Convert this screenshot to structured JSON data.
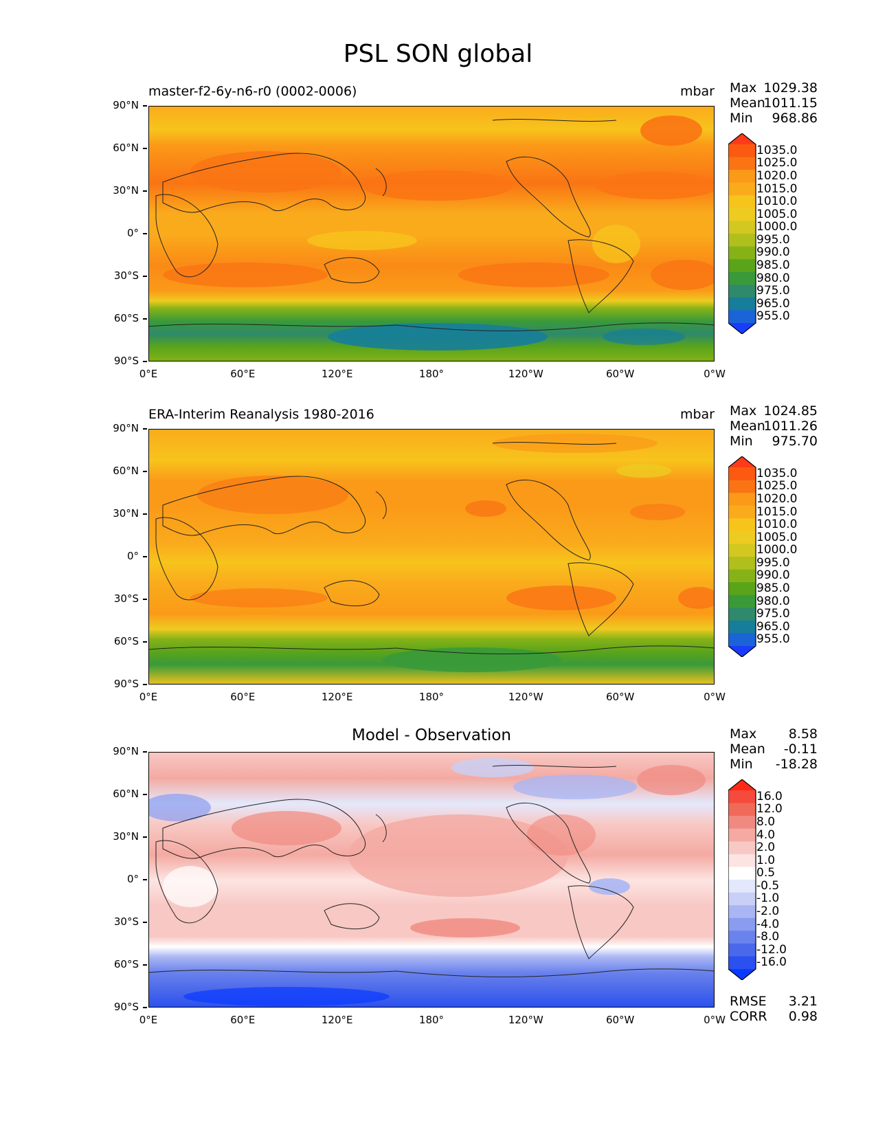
{
  "figure": {
    "title": "PSL SON global"
  },
  "axes": {
    "y_ticks": [
      "90°N",
      "60°N",
      "30°N",
      "0°",
      "30°S",
      "60°S",
      "90°S"
    ],
    "x_ticks": [
      "0°E",
      "60°E",
      "120°E",
      "180°",
      "120°W",
      "60°W",
      "0°W"
    ]
  },
  "panels": [
    {
      "id": "model",
      "title_left": "master-f2-6y-n6-r0 (0002-0006)",
      "title_right": "mbar",
      "stats": [
        {
          "label": "Max",
          "value": "1029.38"
        },
        {
          "label": "Mean",
          "value": "1011.15"
        },
        {
          "label": "Min",
          "value": "968.86"
        }
      ],
      "colorbar": {
        "levels": [
          "1035.0",
          "1025.0",
          "1020.0",
          "1015.0",
          "1010.0",
          "1005.0",
          "1000.0",
          "995.0",
          "990.0",
          "985.0",
          "980.0",
          "975.0",
          "965.0",
          "955.0"
        ],
        "colors": [
          "#ff3a1a",
          "#fc5a10",
          "#fa7414",
          "#fb9a18",
          "#faab1c",
          "#f7c41c",
          "#eecb20",
          "#d2c820",
          "#b0bf1c",
          "#86b218",
          "#5aa41a",
          "#3a9a3a",
          "#2e8a6a",
          "#167e9a",
          "#1a64d8",
          "#1a3cff"
        ]
      }
    },
    {
      "id": "observation",
      "title_left": "ERA-Interim Reanalysis 1980-2016",
      "title_right": "mbar",
      "stats": [
        {
          "label": "Max",
          "value": "1024.85"
        },
        {
          "label": "Mean",
          "value": "1011.26"
        },
        {
          "label": "Min",
          "value": "975.70"
        }
      ],
      "colorbar": {
        "levels": [
          "1035.0",
          "1025.0",
          "1020.0",
          "1015.0",
          "1010.0",
          "1005.0",
          "1000.0",
          "995.0",
          "990.0",
          "985.0",
          "980.0",
          "975.0",
          "965.0",
          "955.0"
        ],
        "colors": [
          "#ff3a1a",
          "#fc5a10",
          "#fa7414",
          "#fb9a18",
          "#faab1c",
          "#f7c41c",
          "#eecb20",
          "#d2c820",
          "#b0bf1c",
          "#86b218",
          "#5aa41a",
          "#3a9a3a",
          "#2e8a6a",
          "#167e9a",
          "#1a64d8",
          "#1a3cff"
        ]
      }
    },
    {
      "id": "difference",
      "title_center": "Model - Observation",
      "stats": [
        {
          "label": "Max",
          "value": "8.58"
        },
        {
          "label": "Mean",
          "value": "-0.11"
        },
        {
          "label": "Min",
          "value": "-18.28"
        }
      ],
      "colorbar": {
        "levels": [
          "16.0",
          "12.0",
          "8.0",
          "4.0",
          "2.0",
          "1.0",
          "0.5",
          "-0.5",
          "-1.0",
          "-2.0",
          "-4.0",
          "-8.0",
          "-12.0",
          "-16.0"
        ],
        "colors": [
          "#ff2a14",
          "#f54a3c",
          "#f06a5a",
          "#f08a80",
          "#f4aaa2",
          "#f8c8c4",
          "#fce4e2",
          "#ffffff",
          "#e4e8fc",
          "#c8d0f8",
          "#aab6f4",
          "#8a9cf0",
          "#6a82ec",
          "#4a68ea",
          "#2a50f0",
          "#0a3aff"
        ]
      },
      "rmse": {
        "label": "RMSE",
        "value": "3.21"
      },
      "corr": {
        "label": "CORR",
        "value": "0.98"
      }
    }
  ]
}
